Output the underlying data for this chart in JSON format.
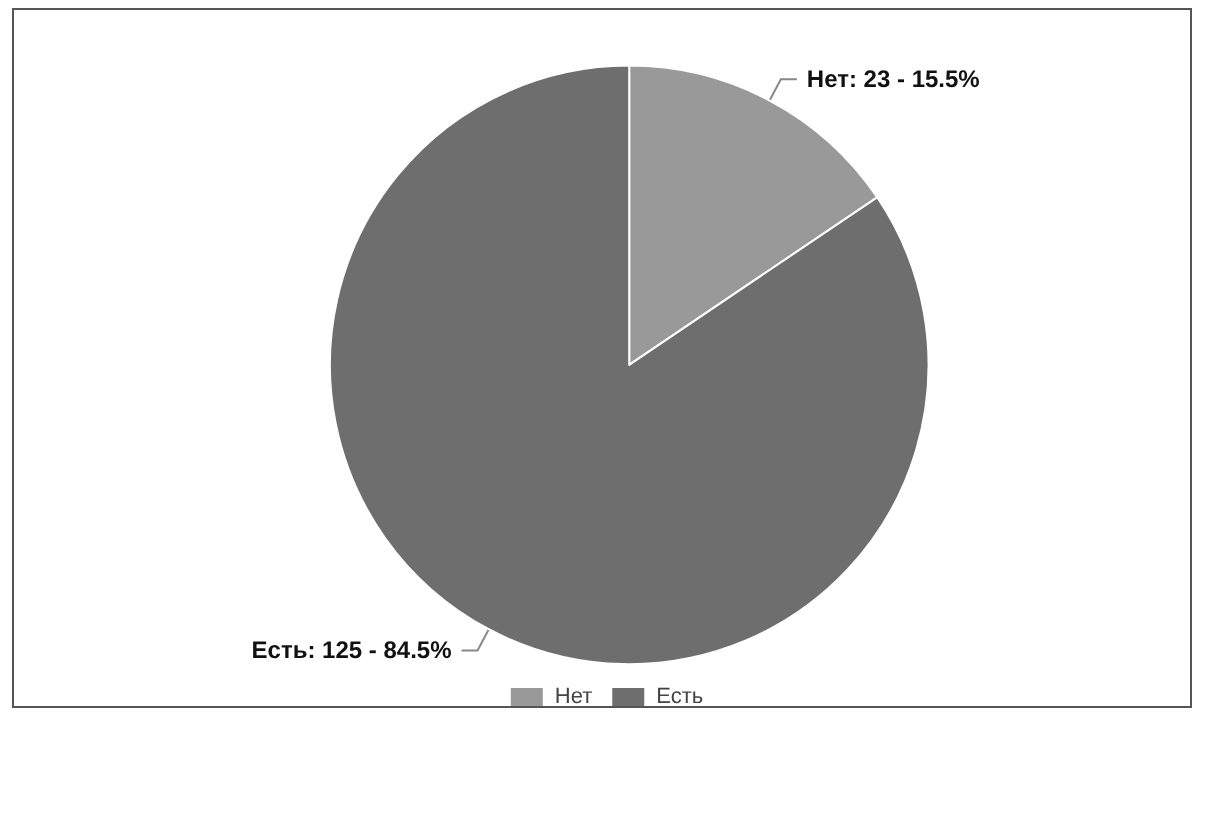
{
  "chart_data": {
    "type": "pie",
    "categories": [
      "Нет",
      "Есть"
    ],
    "values": [
      23,
      125
    ],
    "colors": [
      "#999999",
      "#6e6e6e"
    ],
    "value_labels": [
      "Нет: 23 - 15.5%",
      "Есть: 125 - 84.5%"
    ],
    "legend": "bottom"
  }
}
